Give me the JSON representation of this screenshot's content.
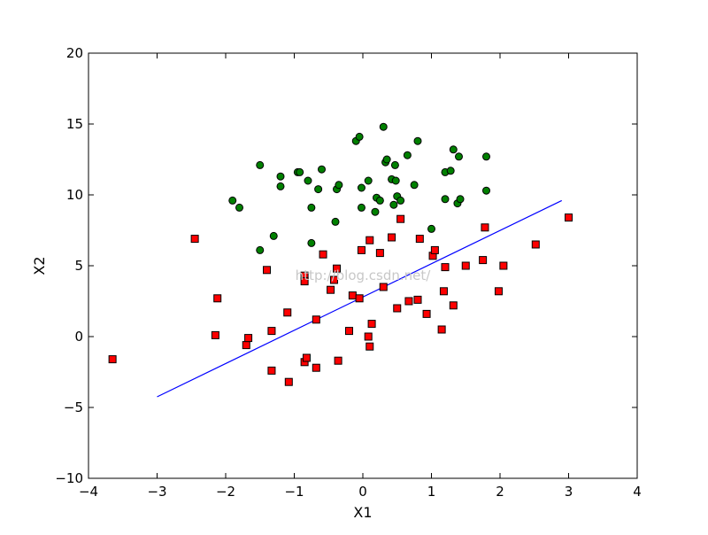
{
  "chart_data": {
    "type": "scatter",
    "title": "",
    "xlabel": "X1",
    "ylabel": "X2",
    "xlim": [
      -4,
      4
    ],
    "ylim": [
      -10,
      20
    ],
    "xticks": [
      -4,
      -3,
      -2,
      -1,
      0,
      1,
      2,
      3,
      4
    ],
    "yticks": [
      -10,
      -5,
      0,
      5,
      10,
      15,
      20
    ],
    "xtick_labels": [
      "−4",
      "−3",
      "−2",
      "−1",
      "0",
      "1",
      "2",
      "3",
      "4"
    ],
    "ytick_labels": [
      "−10",
      "−5",
      "0",
      "5",
      "10",
      "15",
      "20"
    ],
    "grid": false,
    "watermark": "http://blog.csdn.net/",
    "series": [
      {
        "marker": "circle",
        "color": "#008000",
        "points": [
          [
            -1.9,
            9.6
          ],
          [
            -1.8,
            9.1
          ],
          [
            -1.5,
            12.1
          ],
          [
            -1.5,
            6.1
          ],
          [
            -1.3,
            7.1
          ],
          [
            -1.2,
            10.6
          ],
          [
            -1.2,
            11.3
          ],
          [
            -0.95,
            11.6
          ],
          [
            -0.92,
            11.6
          ],
          [
            -0.8,
            11.0
          ],
          [
            -0.75,
            9.1
          ],
          [
            -0.75,
            6.6
          ],
          [
            -0.65,
            10.4
          ],
          [
            -0.6,
            11.8
          ],
          [
            -0.4,
            8.1
          ],
          [
            -0.38,
            10.4
          ],
          [
            -0.35,
            10.7
          ],
          [
            -0.1,
            13.8
          ],
          [
            -0.05,
            14.1
          ],
          [
            -0.02,
            10.5
          ],
          [
            -0.02,
            9.1
          ],
          [
            0.08,
            11.0
          ],
          [
            0.18,
            8.8
          ],
          [
            0.2,
            9.8
          ],
          [
            0.25,
            9.6
          ],
          [
            0.3,
            14.8
          ],
          [
            0.33,
            12.3
          ],
          [
            0.35,
            12.5
          ],
          [
            0.42,
            11.1
          ],
          [
            0.45,
            9.3
          ],
          [
            0.47,
            12.1
          ],
          [
            0.48,
            11.0
          ],
          [
            0.5,
            9.9
          ],
          [
            0.55,
            9.6
          ],
          [
            0.65,
            12.8
          ],
          [
            0.75,
            10.7
          ],
          [
            0.8,
            13.8
          ],
          [
            1.0,
            7.6
          ],
          [
            1.2,
            9.7
          ],
          [
            1.2,
            11.6
          ],
          [
            1.28,
            11.7
          ],
          [
            1.32,
            13.2
          ],
          [
            1.38,
            9.4
          ],
          [
            1.4,
            12.7
          ],
          [
            1.42,
            9.7
          ],
          [
            1.8,
            12.7
          ],
          [
            1.8,
            10.3
          ]
        ]
      },
      {
        "marker": "square",
        "color": "#ff0000",
        "points": [
          [
            -3.65,
            -1.6
          ],
          [
            -2.45,
            6.9
          ],
          [
            -2.15,
            0.1
          ],
          [
            -2.12,
            2.7
          ],
          [
            -1.7,
            -0.6
          ],
          [
            -1.67,
            -0.1
          ],
          [
            -1.4,
            4.7
          ],
          [
            -1.33,
            0.4
          ],
          [
            -1.33,
            -2.4
          ],
          [
            -1.1,
            1.7
          ],
          [
            -1.08,
            -3.2
          ],
          [
            -0.85,
            4.3
          ],
          [
            -0.85,
            3.9
          ],
          [
            -0.85,
            -1.8
          ],
          [
            -0.82,
            -1.5
          ],
          [
            -0.68,
            -2.2
          ],
          [
            -0.68,
            1.2
          ],
          [
            -0.58,
            5.8
          ],
          [
            -0.47,
            3.3
          ],
          [
            -0.42,
            4.0
          ],
          [
            -0.38,
            4.8
          ],
          [
            -0.36,
            -1.7
          ],
          [
            -0.2,
            0.4
          ],
          [
            -0.15,
            2.9
          ],
          [
            -0.05,
            2.7
          ],
          [
            -0.02,
            6.1
          ],
          [
            0.08,
            0.0
          ],
          [
            0.1,
            -0.7
          ],
          [
            0.1,
            6.8
          ],
          [
            0.13,
            0.9
          ],
          [
            0.25,
            5.9
          ],
          [
            0.3,
            3.5
          ],
          [
            0.42,
            7.0
          ],
          [
            0.5,
            2.0
          ],
          [
            0.55,
            8.3
          ],
          [
            0.67,
            2.5
          ],
          [
            0.8,
            2.6
          ],
          [
            0.83,
            6.9
          ],
          [
            0.93,
            1.6
          ],
          [
            1.02,
            5.7
          ],
          [
            1.05,
            6.1
          ],
          [
            1.15,
            0.5
          ],
          [
            1.18,
            3.2
          ],
          [
            1.2,
            4.9
          ],
          [
            1.32,
            2.2
          ],
          [
            1.5,
            5.0
          ],
          [
            1.75,
            5.4
          ],
          [
            1.78,
            7.7
          ],
          [
            1.98,
            3.2
          ],
          [
            2.05,
            5.0
          ],
          [
            2.52,
            6.5
          ],
          [
            3.0,
            8.4
          ]
        ]
      }
    ],
    "line": {
      "color": "#0000ff",
      "x": [
        -3.0,
        2.9
      ],
      "y": [
        -4.25,
        9.6
      ]
    }
  }
}
